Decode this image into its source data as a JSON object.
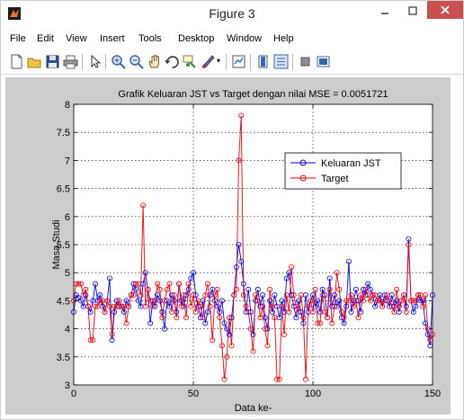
{
  "window": {
    "title": "Figure 3",
    "minimize_icon": "minimize-icon",
    "maximize_icon": "maximize-icon",
    "close_icon": "close-icon"
  },
  "menu": [
    "File",
    "Edit",
    "View",
    "Insert",
    "Tools",
    "Desktop",
    "Window",
    "Help"
  ],
  "toolbar": [
    "new-figure-icon",
    "open-icon",
    "save-icon",
    "print-icon",
    "edit-plot-icon",
    "zoom-in-icon",
    "zoom-out-icon",
    "pan-icon",
    "rotate-3d-icon",
    "data-cursor-icon",
    "brush-icon",
    "link-plot-icon",
    "colorbar-icon",
    "legend-icon",
    "hide-plot-tools-icon",
    "show-plot-tools-icon"
  ],
  "colors": {
    "series_jst": "#0000ff",
    "series_target": "#ff0000",
    "figure_bg": "#cccccc",
    "close_button": "#c75050"
  },
  "chart_data": {
    "type": "line",
    "title": "Grafik Keluaran JST vs Target dengan nilai MSE = 0.0051721",
    "xlabel": "Data ke-",
    "ylabel": "Masa Studi",
    "xlim": [
      0,
      150
    ],
    "ylim": [
      3,
      8
    ],
    "xticks": [
      "0",
      "50",
      "100",
      "150"
    ],
    "yticks": [
      "3",
      "3.5",
      "4",
      "4.5",
      "5",
      "5.5",
      "6",
      "6.5",
      "7",
      "7.5",
      "8"
    ],
    "grid": "dotted",
    "legend_position": "upper-right",
    "series": [
      {
        "name": "Keluaran JST",
        "marker": "circle",
        "values": [
          4.3,
          4.6,
          4.55,
          4.5,
          4.4,
          4.6,
          4.4,
          4.3,
          4.5,
          4.8,
          4.5,
          4.6,
          4.4,
          4.3,
          4.5,
          4.9,
          3.8,
          4.3,
          4.5,
          4.4,
          4.4,
          4.3,
          4.5,
          4.4,
          4.6,
          4.8,
          4.7,
          4.5,
          4.4,
          4.8,
          5.0,
          4.7,
          4.1,
          4.5,
          4.4,
          4.6,
          4.5,
          4.3,
          4.0,
          4.5,
          4.4,
          4.6,
          4.5,
          4.3,
          4.8,
          4.5,
          4.4,
          4.6,
          4.7,
          4.9,
          5.0,
          4.6,
          4.4,
          4.2,
          4.5,
          4.1,
          4.3,
          4.6,
          4.7,
          4.5,
          4.4,
          4.3,
          4.5,
          4.1,
          4.0,
          3.9,
          4.2,
          4.6,
          5.1,
          5.5,
          5.2,
          4.8,
          4.3,
          4.7,
          4.3,
          3.9,
          4.5,
          4.7,
          4.4,
          4.6,
          4.2,
          4.0,
          4.5,
          4.3,
          4.6,
          4.4,
          4.2,
          4.5,
          4.3,
          4.9,
          5.0,
          4.6,
          4.4,
          4.2,
          4.5,
          4.3,
          4.1,
          4.6,
          4.3,
          4.5,
          4.6,
          4.4,
          4.5,
          4.3,
          4.7,
          4.6,
          4.2,
          4.9,
          4.4,
          4.6,
          4.4,
          4.5,
          4.2,
          4.1,
          4.4,
          5.2,
          4.3,
          4.5,
          4.7,
          4.5,
          4.3,
          4.7,
          4.6,
          4.8,
          4.7,
          4.6,
          4.4,
          4.5,
          4.6,
          4.4,
          4.6,
          4.5,
          4.4,
          4.6,
          4.4,
          4.5,
          4.3,
          4.5,
          4.6,
          4.4,
          5.6,
          4.5,
          4.3,
          4.4,
          4.6,
          4.5,
          4.5,
          4.1,
          3.9,
          3.7,
          4.6
        ]
      },
      {
        "name": "Target",
        "marker": "circle",
        "values": [
          4.5,
          4.8,
          4.8,
          4.8,
          4.6,
          4.7,
          4.4,
          3.8,
          3.8,
          4.4,
          4.4,
          4.5,
          4.5,
          4.3,
          4.5,
          4.4,
          3.9,
          4.4,
          4.4,
          4.5,
          4.4,
          4.4,
          4.1,
          4.4,
          4.6,
          4.6,
          4.8,
          4.8,
          4.6,
          6.2,
          4.4,
          4.7,
          4.5,
          4.4,
          4.5,
          4.8,
          4.7,
          4.2,
          4.5,
          4.7,
          4.8,
          4.3,
          4.6,
          4.2,
          4.8,
          4.4,
          4.6,
          4.2,
          4.8,
          4.4,
          4.6,
          4.3,
          4.5,
          4.4,
          4.2,
          4.6,
          4.8,
          4.4,
          3.8,
          4.6,
          4.7,
          4.2,
          3.7,
          3.1,
          3.5,
          4.2,
          3.7,
          4.6,
          4.7,
          7.0,
          7.8,
          4.6,
          4.4,
          4.3,
          4.0,
          3.6,
          4.6,
          4.5,
          4.2,
          4.4,
          4.0,
          3.7,
          4.7,
          4.4,
          4.2,
          3.1,
          3.1,
          4.4,
          3.9,
          4.6,
          4.3,
          5.1,
          4.6,
          4.4,
          4.3,
          4.6,
          4.2,
          3.1,
          4.4,
          4.5,
          4.3,
          4.7,
          4.1,
          4.1,
          4.6,
          4.3,
          4.2,
          4.7,
          4.1,
          4.4,
          5.0,
          4.7,
          4.3,
          4.2,
          4.5,
          4.5,
          4.6,
          4.4,
          4.5,
          4.2,
          4.6,
          4.5,
          4.7,
          4.6,
          4.5,
          4.6,
          4.6,
          4.5,
          4.5,
          4.4,
          4.5,
          4.6,
          4.5,
          4.4,
          4.3,
          4.7,
          4.4,
          4.5,
          4.6,
          4.3,
          5.5,
          4.5,
          4.5,
          4.5,
          4.6,
          4.6,
          4.4,
          4.6,
          4.0,
          3.8,
          3.9
        ]
      }
    ]
  }
}
